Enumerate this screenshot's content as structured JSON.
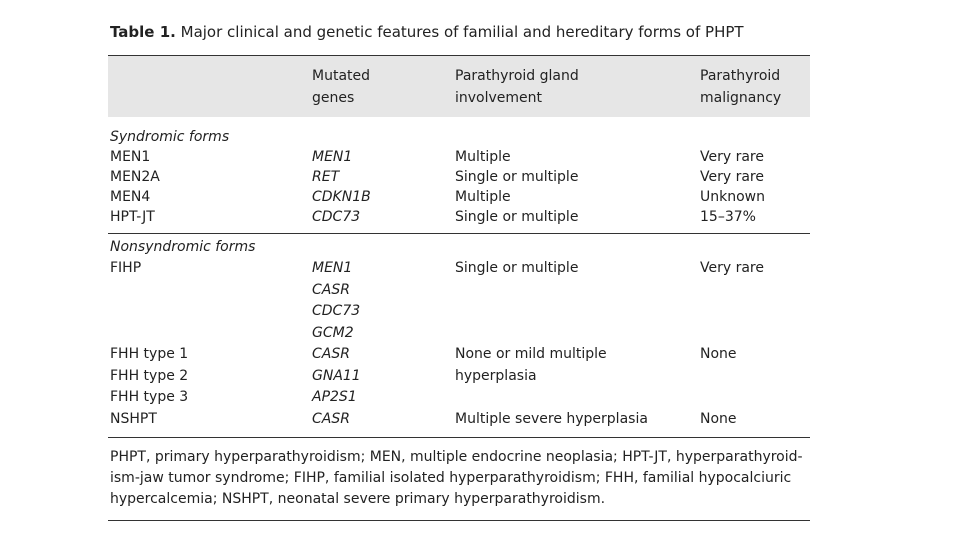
{
  "caption": {
    "label": "Table 1.",
    "title": "Major clinical and genetic features of familial and hereditary forms of PHPT"
  },
  "header": [
    [
      "Mutated",
      "genes"
    ],
    [
      "Parathyroid gland",
      "involvement"
    ],
    [
      "Parathyroid",
      "malignancy"
    ]
  ],
  "sections": [
    {
      "title": "Syndromic forms",
      "rows": [
        {
          "name": "MEN1",
          "genes": "MEN1",
          "gland": "Multiple",
          "malignancy": "Very rare"
        },
        {
          "name": "MEN2A",
          "genes": "RET",
          "gland": "Single or multiple",
          "malignancy": "Very rare"
        },
        {
          "name": "MEN4",
          "genes": "CDKN1B",
          "gland": "Multiple",
          "malignancy": "Unknown"
        },
        {
          "name": "HPT-JT",
          "genes": "CDC73",
          "gland": "Single or multiple",
          "malignancy": "15–37%"
        }
      ]
    },
    {
      "title": "Nonsyndromic forms",
      "rows": [
        {
          "name": "FIHP",
          "genes": "MEN1",
          "gland": "Single or multiple",
          "malignancy": "Very rare"
        },
        {
          "genes": "CASR"
        },
        {
          "genes": "CDC73"
        },
        {
          "genes": "GCM2"
        },
        {
          "name": "FHH type 1",
          "genes": "CASR",
          "gland": "None or mild multiple",
          "malignancy": "None"
        },
        {
          "name": "FHH type 2",
          "genes": "GNA11",
          "gland": "hyperplasia"
        },
        {
          "name": "FHH type 3",
          "genes": "AP2S1"
        },
        {
          "name": "NSHPT",
          "genes": "CASR",
          "gland": "Multiple severe hyperplasia",
          "malignancy": "None"
        }
      ]
    }
  ],
  "footnote": [
    "PHPT, primary hyperparathyroidism; MEN, multiple endocrine neoplasia; HPT-JT, hyperparathyroid-",
    "ism-jaw tumor syndrome; FIHP, familial isolated hyperparathyroidism; FHH, familial hypocalciuric",
    "hypercalcemia; NSHPT, neonatal severe primary hyperparathyroidism."
  ]
}
